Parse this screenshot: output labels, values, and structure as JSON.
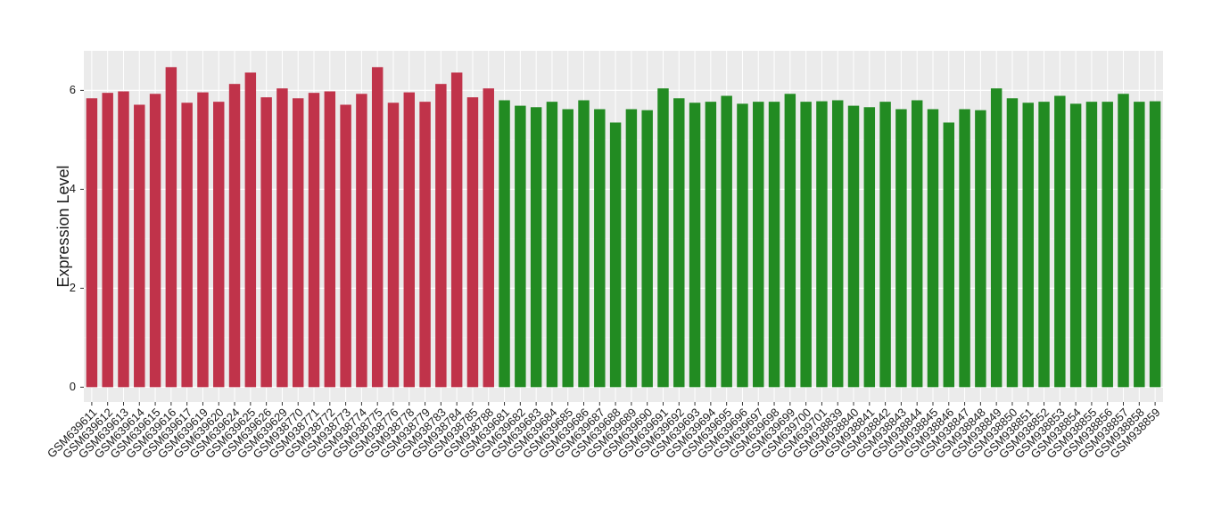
{
  "chart_data": {
    "type": "bar",
    "y_label": "Expression Level",
    "categories": [
      "GSM639611",
      "GSM639612",
      "GSM639613",
      "GSM639614",
      "GSM639615",
      "GSM639616",
      "GSM639617",
      "GSM639619",
      "GSM639620",
      "GSM639624",
      "GSM639625",
      "GSM639626",
      "GSM639629",
      "GSM938770",
      "GSM938771",
      "GSM938772",
      "GSM938773",
      "GSM938774",
      "GSM938775",
      "GSM938776",
      "GSM938778",
      "GSM938779",
      "GSM938783",
      "GSM938784",
      "GSM938785",
      "GSM938788",
      "GSM639681",
      "GSM639682",
      "GSM639683",
      "GSM639684",
      "GSM639685",
      "GSM639686",
      "GSM639687",
      "GSM639688",
      "GSM639689",
      "GSM639690",
      "GSM639691",
      "GSM639692",
      "GSM639693",
      "GSM639694",
      "GSM639695",
      "GSM639696",
      "GSM639697",
      "GSM639698",
      "GSM639699",
      "GSM639700",
      "GSM639701",
      "GSM938839",
      "GSM938840",
      "GSM938841",
      "GSM938842",
      "GSM938843",
      "GSM938844",
      "GSM938845",
      "GSM938846",
      "GSM938847",
      "GSM938848",
      "GSM938849",
      "GSM938850",
      "GSM938851",
      "GSM938852",
      "GSM938853",
      "GSM938854",
      "GSM938855",
      "GSM938856",
      "GSM938857",
      "GSM938858",
      "GSM938859"
    ],
    "values": [
      5.84,
      5.95,
      5.98,
      5.71,
      5.93,
      6.47,
      5.75,
      5.96,
      5.77,
      6.13,
      6.36,
      5.86,
      6.04,
      5.84,
      5.95,
      5.98,
      5.71,
      5.93,
      6.47,
      5.75,
      5.96,
      5.77,
      6.13,
      6.36,
      5.86,
      6.04,
      5.8,
      5.69,
      5.66,
      5.77,
      5.62,
      5.8,
      5.62,
      5.35,
      5.62,
      5.6,
      6.04,
      5.84,
      5.75,
      5.77,
      5.89,
      5.73,
      5.77,
      5.77,
      5.93,
      5.77,
      5.78,
      5.8,
      5.69,
      5.66,
      5.77,
      5.62,
      5.8,
      5.62,
      5.35,
      5.62,
      5.6,
      6.04,
      5.84,
      5.75,
      5.77,
      5.89,
      5.73,
      5.77,
      5.77,
      5.93,
      5.77,
      5.78
    ],
    "colors": [
      "#c0334a",
      "#c0334a",
      "#c0334a",
      "#c0334a",
      "#c0334a",
      "#c0334a",
      "#c0334a",
      "#c0334a",
      "#c0334a",
      "#c0334a",
      "#c0334a",
      "#c0334a",
      "#c0334a",
      "#c0334a",
      "#c0334a",
      "#c0334a",
      "#c0334a",
      "#c0334a",
      "#c0334a",
      "#c0334a",
      "#c0334a",
      "#c0334a",
      "#c0334a",
      "#c0334a",
      "#c0334a",
      "#c0334a",
      "#228b22",
      "#228b22",
      "#228b22",
      "#228b22",
      "#228b22",
      "#228b22",
      "#228b22",
      "#228b22",
      "#228b22",
      "#228b22",
      "#228b22",
      "#228b22",
      "#228b22",
      "#228b22",
      "#228b22",
      "#228b22",
      "#228b22",
      "#228b22",
      "#228b22",
      "#228b22",
      "#228b22",
      "#228b22",
      "#228b22",
      "#228b22",
      "#228b22",
      "#228b22",
      "#228b22",
      "#228b22",
      "#228b22",
      "#228b22",
      "#228b22",
      "#228b22",
      "#228b22",
      "#228b22",
      "#228b22",
      "#228b22",
      "#228b22",
      "#228b22",
      "#228b22",
      "#228b22",
      "#228b22",
      "#228b22"
    ],
    "ylim": [
      -0.3,
      6.8
    ],
    "yticks": [
      0,
      2,
      4,
      6
    ],
    "grid": true
  }
}
